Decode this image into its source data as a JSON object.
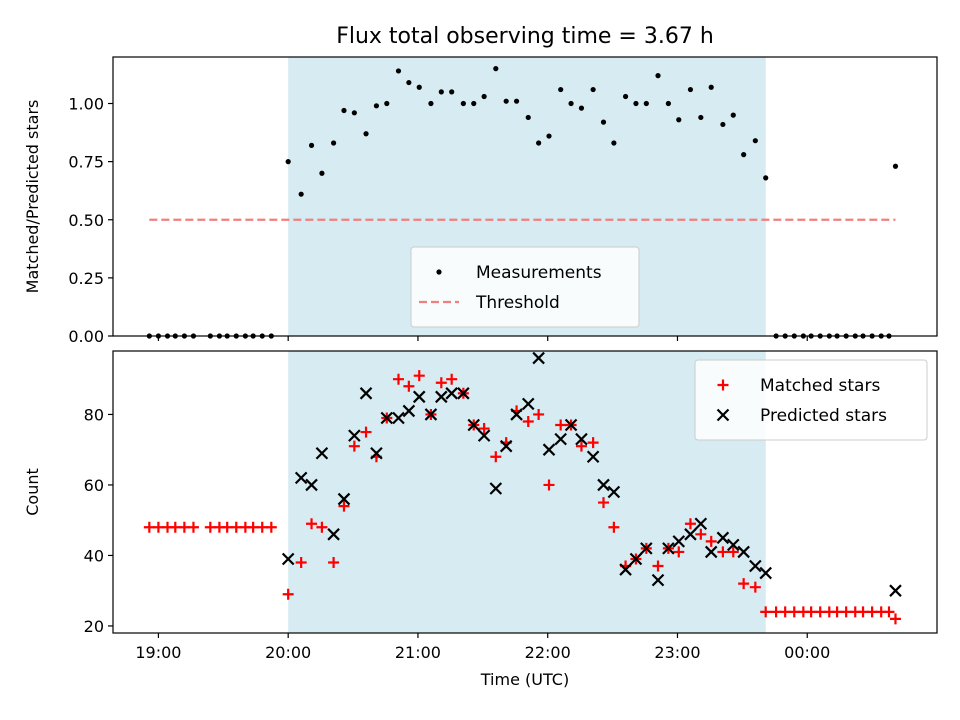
{
  "chart_data": [
    {
      "type": "scatter",
      "title": "Flux total observing time = 3.67 h",
      "xlabel": "",
      "ylabel": "Matched/Predicted stars",
      "ylim": [
        0,
        1.2
      ],
      "yticks": [
        0.0,
        0.25,
        0.5,
        0.75,
        1.0
      ],
      "ytick_labels": [
        "0.00",
        "0.25",
        "0.50",
        "0.75",
        "1.00"
      ],
      "x_axis_unit": "hours after 19:00 UTC",
      "xlim": [
        -0.35,
        6.0
      ],
      "xticks": [
        0,
        1,
        2,
        3,
        4,
        5
      ],
      "xtick_labels": [
        "19:00",
        "20:00",
        "21:00",
        "22:00",
        "23:00",
        "00:00"
      ],
      "highlight_span": [
        1.0,
        4.68
      ],
      "highlight_color": "#add8e6",
      "legend_position": "lower-center",
      "threshold": {
        "name": "Threshold",
        "value": 0.5,
        "x_range": [
          -0.07,
          5.68
        ],
        "color": "#f08080"
      },
      "series": [
        {
          "name": "Measurements",
          "color": "#000000",
          "marker": "dot",
          "points": [
            [
              -0.07,
              0
            ],
            [
              0,
              0
            ],
            [
              0.07,
              0
            ],
            [
              0.13,
              0
            ],
            [
              0.2,
              0
            ],
            [
              0.27,
              0
            ],
            [
              0.4,
              0
            ],
            [
              0.47,
              0
            ],
            [
              0.53,
              0
            ],
            [
              0.6,
              0
            ],
            [
              0.67,
              0
            ],
            [
              0.73,
              0
            ],
            [
              0.8,
              0
            ],
            [
              0.87,
              0
            ],
            [
              1.0,
              0.75
            ],
            [
              1.1,
              0.61
            ],
            [
              1.18,
              0.82
            ],
            [
              1.26,
              0.7
            ],
            [
              1.35,
              0.83
            ],
            [
              1.43,
              0.97
            ],
            [
              1.51,
              0.96
            ],
            [
              1.6,
              0.87
            ],
            [
              1.68,
              0.99
            ],
            [
              1.76,
              1.0
            ],
            [
              1.85,
              1.14
            ],
            [
              1.93,
              1.09
            ],
            [
              2.01,
              1.07
            ],
            [
              2.1,
              1.0
            ],
            [
              2.18,
              1.05
            ],
            [
              2.26,
              1.05
            ],
            [
              2.35,
              1.0
            ],
            [
              2.43,
              1.0
            ],
            [
              2.51,
              1.03
            ],
            [
              2.6,
              1.15
            ],
            [
              2.68,
              1.01
            ],
            [
              2.76,
              1.01
            ],
            [
              2.85,
              0.94
            ],
            [
              2.93,
              0.83
            ],
            [
              3.01,
              0.86
            ],
            [
              3.1,
              1.06
            ],
            [
              3.18,
              1.0
            ],
            [
              3.26,
              0.98
            ],
            [
              3.35,
              1.06
            ],
            [
              3.43,
              0.92
            ],
            [
              3.51,
              0.83
            ],
            [
              3.6,
              1.03
            ],
            [
              3.68,
              1.0
            ],
            [
              3.76,
              1.0
            ],
            [
              3.85,
              1.12
            ],
            [
              3.93,
              1.0
            ],
            [
              4.01,
              0.93
            ],
            [
              4.1,
              1.06
            ],
            [
              4.18,
              0.94
            ],
            [
              4.26,
              1.07
            ],
            [
              4.35,
              0.91
            ],
            [
              4.43,
              0.95
            ],
            [
              4.51,
              0.78
            ],
            [
              4.6,
              0.84
            ],
            [
              4.68,
              0.68
            ],
            [
              4.76,
              0
            ],
            [
              4.83,
              0
            ],
            [
              4.9,
              0
            ],
            [
              4.97,
              0
            ],
            [
              5.03,
              0
            ],
            [
              5.1,
              0
            ],
            [
              5.17,
              0
            ],
            [
              5.23,
              0
            ],
            [
              5.3,
              0
            ],
            [
              5.37,
              0
            ],
            [
              5.43,
              0
            ],
            [
              5.5,
              0
            ],
            [
              5.57,
              0
            ],
            [
              5.63,
              0
            ],
            [
              5.68,
              0.73
            ]
          ]
        }
      ]
    },
    {
      "type": "scatter",
      "title": "",
      "xlabel": "Time (UTC)",
      "ylabel": "Count",
      "ylim": [
        18,
        98
      ],
      "yticks": [
        20,
        40,
        60,
        80
      ],
      "ytick_labels": [
        "20",
        "40",
        "60",
        "80"
      ],
      "x_axis_unit": "hours after 19:00 UTC",
      "xlim": [
        -0.35,
        6.0
      ],
      "xticks": [
        0,
        1,
        2,
        3,
        4,
        5
      ],
      "xtick_labels": [
        "19:00",
        "20:00",
        "21:00",
        "22:00",
        "23:00",
        "00:00"
      ],
      "highlight_span": [
        1.0,
        4.68
      ],
      "highlight_color": "#add8e6",
      "legend_position": "top-right",
      "series": [
        {
          "name": "Matched stars",
          "color": "#ff0000",
          "marker": "plus",
          "points": [
            [
              -0.07,
              48
            ],
            [
              0,
              48
            ],
            [
              0.07,
              48
            ],
            [
              0.13,
              48
            ],
            [
              0.2,
              48
            ],
            [
              0.27,
              48
            ],
            [
              0.4,
              48
            ],
            [
              0.47,
              48
            ],
            [
              0.53,
              48
            ],
            [
              0.6,
              48
            ],
            [
              0.67,
              48
            ],
            [
              0.73,
              48
            ],
            [
              0.8,
              48
            ],
            [
              0.87,
              48
            ],
            [
              1.0,
              29
            ],
            [
              1.1,
              38
            ],
            [
              1.18,
              49
            ],
            [
              1.26,
              48
            ],
            [
              1.35,
              38
            ],
            [
              1.43,
              54
            ],
            [
              1.51,
              71
            ],
            [
              1.6,
              75
            ],
            [
              1.68,
              68
            ],
            [
              1.76,
              79
            ],
            [
              1.85,
              90
            ],
            [
              1.93,
              88
            ],
            [
              2.01,
              91
            ],
            [
              2.1,
              80
            ],
            [
              2.18,
              89
            ],
            [
              2.26,
              90
            ],
            [
              2.35,
              86
            ],
            [
              2.43,
              77
            ],
            [
              2.51,
              76
            ],
            [
              2.6,
              68
            ],
            [
              2.68,
              72
            ],
            [
              2.76,
              81
            ],
            [
              2.85,
              78
            ],
            [
              2.93,
              80
            ],
            [
              3.01,
              60
            ],
            [
              3.1,
              77
            ],
            [
              3.18,
              77
            ],
            [
              3.26,
              71
            ],
            [
              3.35,
              72
            ],
            [
              3.43,
              55
            ],
            [
              3.51,
              48
            ],
            [
              3.6,
              37
            ],
            [
              3.68,
              39
            ],
            [
              3.76,
              42
            ],
            [
              3.85,
              37
            ],
            [
              3.93,
              42
            ],
            [
              4.01,
              41
            ],
            [
              4.1,
              49
            ],
            [
              4.18,
              46
            ],
            [
              4.26,
              44
            ],
            [
              4.35,
              41
            ],
            [
              4.43,
              41
            ],
            [
              4.51,
              32
            ],
            [
              4.6,
              31
            ],
            [
              4.68,
              24
            ],
            [
              4.76,
              24
            ],
            [
              4.83,
              24
            ],
            [
              4.9,
              24
            ],
            [
              4.97,
              24
            ],
            [
              5.03,
              24
            ],
            [
              5.1,
              24
            ],
            [
              5.17,
              24
            ],
            [
              5.23,
              24
            ],
            [
              5.3,
              24
            ],
            [
              5.37,
              24
            ],
            [
              5.43,
              24
            ],
            [
              5.5,
              24
            ],
            [
              5.57,
              24
            ],
            [
              5.63,
              24
            ],
            [
              5.68,
              22
            ]
          ]
        },
        {
          "name": "Predicted stars",
          "color": "#000000",
          "marker": "x",
          "points": [
            [
              1.0,
              39
            ],
            [
              1.1,
              62
            ],
            [
              1.18,
              60
            ],
            [
              1.26,
              69
            ],
            [
              1.35,
              46
            ],
            [
              1.43,
              56
            ],
            [
              1.51,
              74
            ],
            [
              1.6,
              86
            ],
            [
              1.68,
              69
            ],
            [
              1.76,
              79
            ],
            [
              1.85,
              79
            ],
            [
              1.93,
              81
            ],
            [
              2.01,
              85
            ],
            [
              2.1,
              80
            ],
            [
              2.18,
              85
            ],
            [
              2.26,
              86
            ],
            [
              2.35,
              86
            ],
            [
              2.43,
              77
            ],
            [
              2.51,
              74
            ],
            [
              2.6,
              59
            ],
            [
              2.68,
              71
            ],
            [
              2.76,
              80
            ],
            [
              2.85,
              83
            ],
            [
              2.93,
              96
            ],
            [
              3.01,
              70
            ],
            [
              3.1,
              73
            ],
            [
              3.18,
              77
            ],
            [
              3.26,
              73
            ],
            [
              3.35,
              68
            ],
            [
              3.43,
              60
            ],
            [
              3.51,
              58
            ],
            [
              3.6,
              36
            ],
            [
              3.68,
              39
            ],
            [
              3.76,
              42
            ],
            [
              3.85,
              33
            ],
            [
              3.93,
              42
            ],
            [
              4.01,
              44
            ],
            [
              4.1,
              46
            ],
            [
              4.18,
              49
            ],
            [
              4.26,
              41
            ],
            [
              4.35,
              45
            ],
            [
              4.43,
              43
            ],
            [
              4.51,
              41
            ],
            [
              4.6,
              37
            ],
            [
              4.68,
              35
            ],
            [
              5.68,
              30
            ]
          ]
        }
      ]
    }
  ]
}
